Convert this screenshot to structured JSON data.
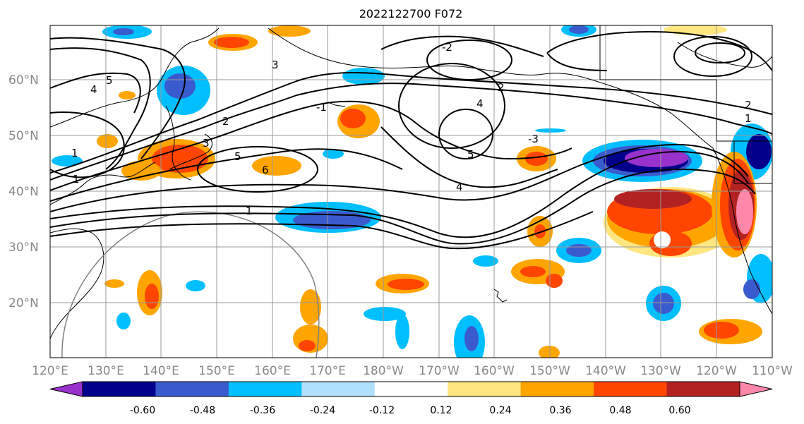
{
  "title": "2022122700 F072",
  "map": {
    "lat_labels": [
      "60°N",
      "50°N",
      "40°N",
      "30°N",
      "20°N"
    ],
    "lon_labels": [
      "120°E",
      "130°E",
      "140°E",
      "150°E",
      "160°E",
      "170°E",
      "180°W",
      "170°W",
      "160°W",
      "150°W",
      "140°W",
      "130°W",
      "120°W",
      "110°W"
    ],
    "contour_labels": [
      "5",
      "4",
      "3",
      "2",
      "1",
      "5",
      "4",
      "3",
      "2",
      "1",
      "-1",
      "-2",
      "-3",
      "4",
      "5",
      "6",
      "1",
      "2",
      "1"
    ]
  },
  "colorbar": {
    "tick_labels": [
      "-0.60",
      "-0.48",
      "-0.36",
      "-0.24",
      "-0.12",
      "0.12",
      "0.24",
      "0.36",
      "0.48",
      "0.60"
    ],
    "colors": [
      "#9932cc",
      "#00008b",
      "#3a5bcd",
      "#00bfff",
      "#b0e0ff",
      "#ffffff",
      "#ffe680",
      "#ffa500",
      "#ff4500",
      "#b22222",
      "#ff88aa"
    ]
  }
}
